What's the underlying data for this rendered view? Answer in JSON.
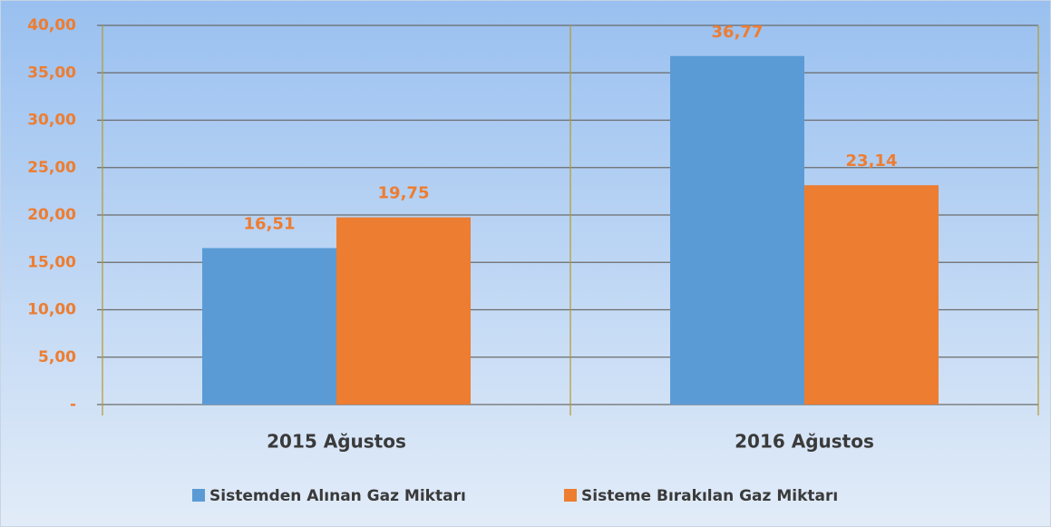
{
  "chart_data": {
    "type": "bar",
    "categories": [
      "2015 Ağustos",
      "2016 Ağustos"
    ],
    "series": [
      {
        "name": "Sistemden Alınan Gaz Miktarı",
        "color": "#5b9bd5",
        "values": [
          16.51,
          36.77
        ],
        "value_labels": [
          "16,51",
          "36,77"
        ]
      },
      {
        "name": "Sisteme Bırakılan Gaz Miktarı",
        "color": "#ed7d31",
        "values": [
          19.75,
          23.14
        ],
        "value_labels": [
          "19,75",
          "23,14"
        ]
      }
    ],
    "ylim": [
      0,
      40
    ],
    "yticks": [
      {
        "value": 0,
        "label": "-"
      },
      {
        "value": 5,
        "label": "5,00"
      },
      {
        "value": 10,
        "label": "10,00"
      },
      {
        "value": 15,
        "label": "15,00"
      },
      {
        "value": 20,
        "label": "20,00"
      },
      {
        "value": 25,
        "label": "25,00"
      },
      {
        "value": 30,
        "label": "30,00"
      },
      {
        "value": 35,
        "label": "35,00"
      },
      {
        "value": 40,
        "label": "40,00"
      }
    ],
    "grid": true,
    "legend": "bottom"
  }
}
